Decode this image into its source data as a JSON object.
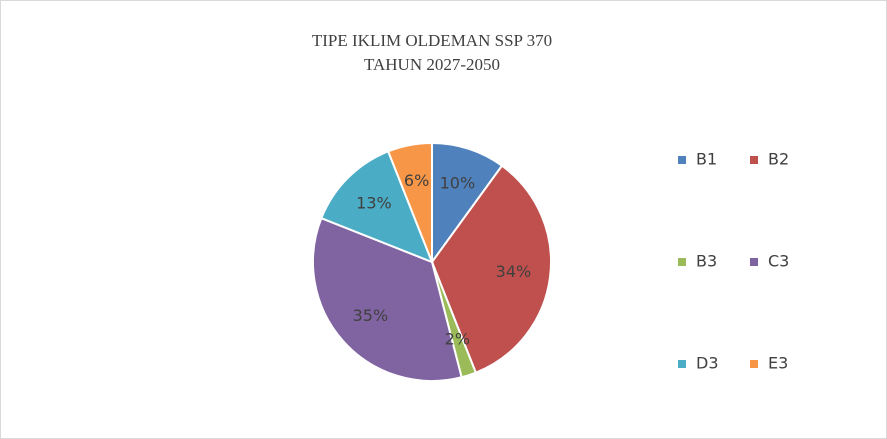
{
  "chart_data": {
    "type": "pie",
    "title": "TIPE IKLIM OLDEMAN SSP 370",
    "subtitle": "TAHUN 2027-2050",
    "categories": [
      "B1",
      "B2",
      "B3",
      "C3",
      "D3",
      "E3"
    ],
    "values": [
      10,
      34,
      2,
      35,
      13,
      6
    ],
    "value_labels": [
      "10%",
      "34%",
      "2%",
      "35%",
      "13%",
      "6%"
    ],
    "colors": [
      "#4f81bd",
      "#c0504d",
      "#9bbb59",
      "#8064a2",
      "#4bacc6",
      "#f79646"
    ],
    "legend": "right"
  }
}
